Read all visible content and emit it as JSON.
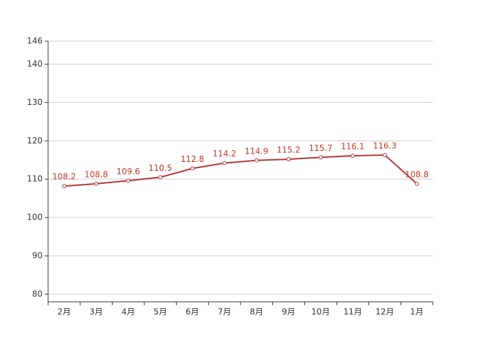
{
  "chart_data": {
    "type": "line",
    "categories": [
      "2月",
      "3月",
      "4月",
      "5月",
      "6月",
      "7月",
      "8月",
      "9月",
      "10月",
      "11月",
      "12月",
      "1月"
    ],
    "series": [
      {
        "color": "#b83232",
        "values": [
          108.2,
          108.8,
          109.6,
          110.5,
          112.8,
          114.2,
          114.9,
          115.2,
          115.7,
          116.1,
          116.3,
          108.8
        ]
      }
    ],
    "ylim": [
      78,
      146
    ],
    "yticks": [
      80,
      90,
      100,
      110,
      120,
      130,
      140,
      146
    ],
    "grid": true
  }
}
